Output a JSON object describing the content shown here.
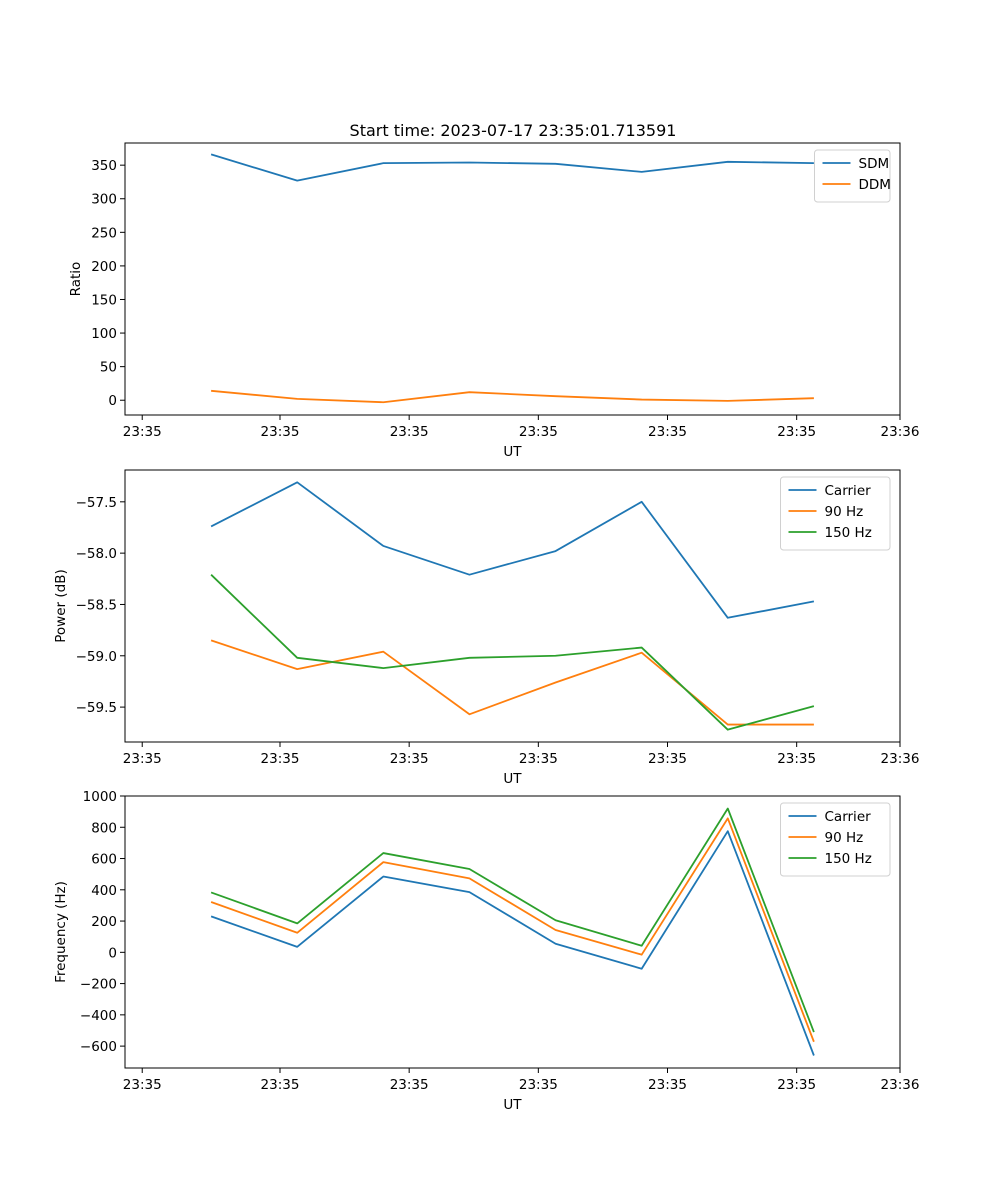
{
  "figure": {
    "title": "Start time: 2023-07-17 23:35:01.713591"
  },
  "chart_data": [
    {
      "type": "line",
      "title": "Start time: 2023-07-17 23:35:01.713591",
      "xlabel": "UT",
      "ylabel": "Ratio",
      "x": [
        1,
        2,
        3,
        4,
        5,
        6,
        7,
        8
      ],
      "xlim": [
        0,
        9
      ],
      "x_ticks": [
        0.2,
        1.8,
        3.3,
        4.8,
        6.3,
        7.8,
        9.0
      ],
      "x_tick_labels": [
        "23:35",
        "23:35",
        "23:35",
        "23:35",
        "23:35",
        "23:35",
        "23:36"
      ],
      "ylim": [
        -22,
        383
      ],
      "y_ticks": [
        0,
        50,
        100,
        150,
        200,
        250,
        300,
        350
      ],
      "y_tick_labels": [
        "0",
        "50",
        "100",
        "150",
        "200",
        "250",
        "300",
        "350"
      ],
      "legend": "top-right",
      "series": [
        {
          "name": "SDM",
          "color": "#1f77b4",
          "values": [
            366,
            327,
            353,
            354,
            352,
            340,
            355,
            353
          ]
        },
        {
          "name": "DDM",
          "color": "#ff7f0e",
          "values": [
            14,
            2,
            -3,
            12,
            6,
            1,
            -1,
            3
          ]
        }
      ]
    },
    {
      "type": "line",
      "title": "",
      "xlabel": "UT",
      "ylabel": "Power (dB)",
      "x": [
        1,
        2,
        3,
        4,
        5,
        6,
        7,
        8
      ],
      "xlim": [
        0,
        9
      ],
      "x_ticks": [
        0.2,
        1.8,
        3.3,
        4.8,
        6.3,
        7.8,
        9.0
      ],
      "x_tick_labels": [
        "23:35",
        "23:35",
        "23:35",
        "23:35",
        "23:35",
        "23:35",
        "23:36"
      ],
      "ylim": [
        -59.84,
        -57.19
      ],
      "y_ticks": [
        -59.5,
        -59.0,
        -58.5,
        -58.0,
        -57.5
      ],
      "y_tick_labels": [
        "−59.5",
        "−59.0",
        "−58.5",
        "−58.0",
        "−57.5"
      ],
      "legend": "top-right",
      "series": [
        {
          "name": "Carrier",
          "color": "#1f77b4",
          "values": [
            -57.74,
            -57.31,
            -57.93,
            -58.21,
            -57.98,
            -57.5,
            -58.63,
            -58.47
          ]
        },
        {
          "name": "90 Hz",
          "color": "#ff7f0e",
          "values": [
            -58.85,
            -59.13,
            -58.96,
            -59.57,
            -59.26,
            -58.97,
            -59.67,
            -59.67
          ]
        },
        {
          "name": "150 Hz",
          "color": "#2ca02c",
          "values": [
            -58.21,
            -59.02,
            -59.12,
            -59.02,
            -59.0,
            -58.92,
            -59.72,
            -59.49
          ]
        }
      ]
    },
    {
      "type": "line",
      "title": "",
      "xlabel": "UT",
      "ylabel": "Frequency (Hz)",
      "x": [
        1,
        2,
        3,
        4,
        5,
        6,
        7,
        8
      ],
      "xlim": [
        0,
        9
      ],
      "x_ticks": [
        0.2,
        1.8,
        3.3,
        4.8,
        6.3,
        7.8,
        9.0
      ],
      "x_tick_labels": [
        "23:35",
        "23:35",
        "23:35",
        "23:35",
        "23:35",
        "23:35",
        "23:36"
      ],
      "ylim": [
        -740,
        1000
      ],
      "y_ticks": [
        -600,
        -400,
        -200,
        0,
        200,
        400,
        600,
        800,
        1000
      ],
      "y_tick_labels": [
        "−600",
        "−400",
        "−200",
        "0",
        "200",
        "400",
        "600",
        "800",
        "1000"
      ],
      "legend": "top-right",
      "series": [
        {
          "name": "Carrier",
          "color": "#1f77b4",
          "values": [
            230,
            35,
            485,
            385,
            55,
            -105,
            775,
            -660
          ]
        },
        {
          "name": "90 Hz",
          "color": "#ff7f0e",
          "values": [
            322,
            125,
            577,
            473,
            143,
            -15,
            857,
            -572
          ]
        },
        {
          "name": "150 Hz",
          "color": "#2ca02c",
          "values": [
            383,
            185,
            635,
            533,
            205,
            42,
            920,
            -510
          ]
        }
      ]
    }
  ]
}
